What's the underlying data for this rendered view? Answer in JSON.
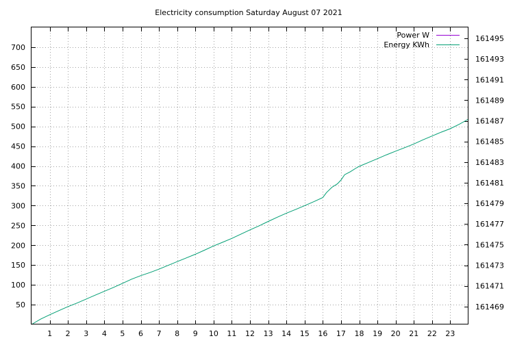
{
  "chart_data": {
    "type": "line",
    "title": "Electricity consumption Saturday August 07 2021",
    "xlim": [
      0,
      24
    ],
    "x_ticks": [
      1,
      2,
      3,
      4,
      5,
      6,
      7,
      8,
      9,
      10,
      11,
      12,
      13,
      14,
      15,
      16,
      17,
      18,
      19,
      20,
      21,
      22,
      23
    ],
    "y_left": {
      "lim": [
        0,
        750
      ],
      "ticks": [
        50,
        100,
        150,
        200,
        250,
        300,
        350,
        400,
        450,
        500,
        550,
        600,
        650,
        700
      ]
    },
    "y_right": {
      "lim": [
        161467.26,
        161496.06
      ],
      "ticks": [
        161469,
        161471,
        161473,
        161475,
        161477,
        161479,
        161481,
        161483,
        161485,
        161487,
        161489,
        161491,
        161493,
        161495
      ]
    },
    "grid": true,
    "legend_position": "top-right",
    "series": [
      {
        "name": "Power W",
        "axis": "left",
        "color": "#9400d3",
        "x": [],
        "y": []
      },
      {
        "name": "Energy KWh",
        "axis": "right",
        "color": "#009e73",
        "x": [
          0.0,
          0.5,
          1.0,
          1.5,
          2.0,
          2.5,
          3.0,
          3.5,
          4.0,
          4.5,
          5.0,
          5.5,
          6.0,
          6.5,
          7.0,
          7.5,
          8.0,
          8.5,
          9.0,
          9.5,
          10.0,
          10.5,
          11.0,
          11.5,
          12.0,
          12.5,
          13.0,
          13.5,
          14.0,
          14.5,
          15.0,
          15.5,
          16.0,
          16.2,
          16.5,
          16.8,
          17.0,
          17.2,
          17.5,
          17.8,
          18.0,
          18.5,
          19.0,
          19.5,
          20.0,
          20.5,
          21.0,
          21.5,
          22.0,
          22.5,
          23.0,
          23.5,
          24.0
        ],
        "y": [
          161467.26,
          161467.78,
          161468.2,
          161468.6,
          161468.99,
          161469.34,
          161469.72,
          161470.1,
          161470.47,
          161470.85,
          161471.25,
          161471.65,
          161471.99,
          161472.29,
          161472.62,
          161472.99,
          161473.35,
          161473.71,
          161474.07,
          161474.46,
          161474.87,
          161475.23,
          161475.6,
          161476.01,
          161476.43,
          161476.82,
          161477.25,
          161477.66,
          161478.05,
          161478.4,
          161478.78,
          161479.16,
          161479.56,
          161480.04,
          161480.56,
          161480.89,
          161481.26,
          161481.78,
          161482.05,
          161482.39,
          161482.59,
          161482.96,
          161483.33,
          161483.71,
          161484.06,
          161484.4,
          161484.76,
          161485.16,
          161485.53,
          161485.9,
          161486.24,
          161486.68,
          161487.17
        ]
      }
    ]
  }
}
